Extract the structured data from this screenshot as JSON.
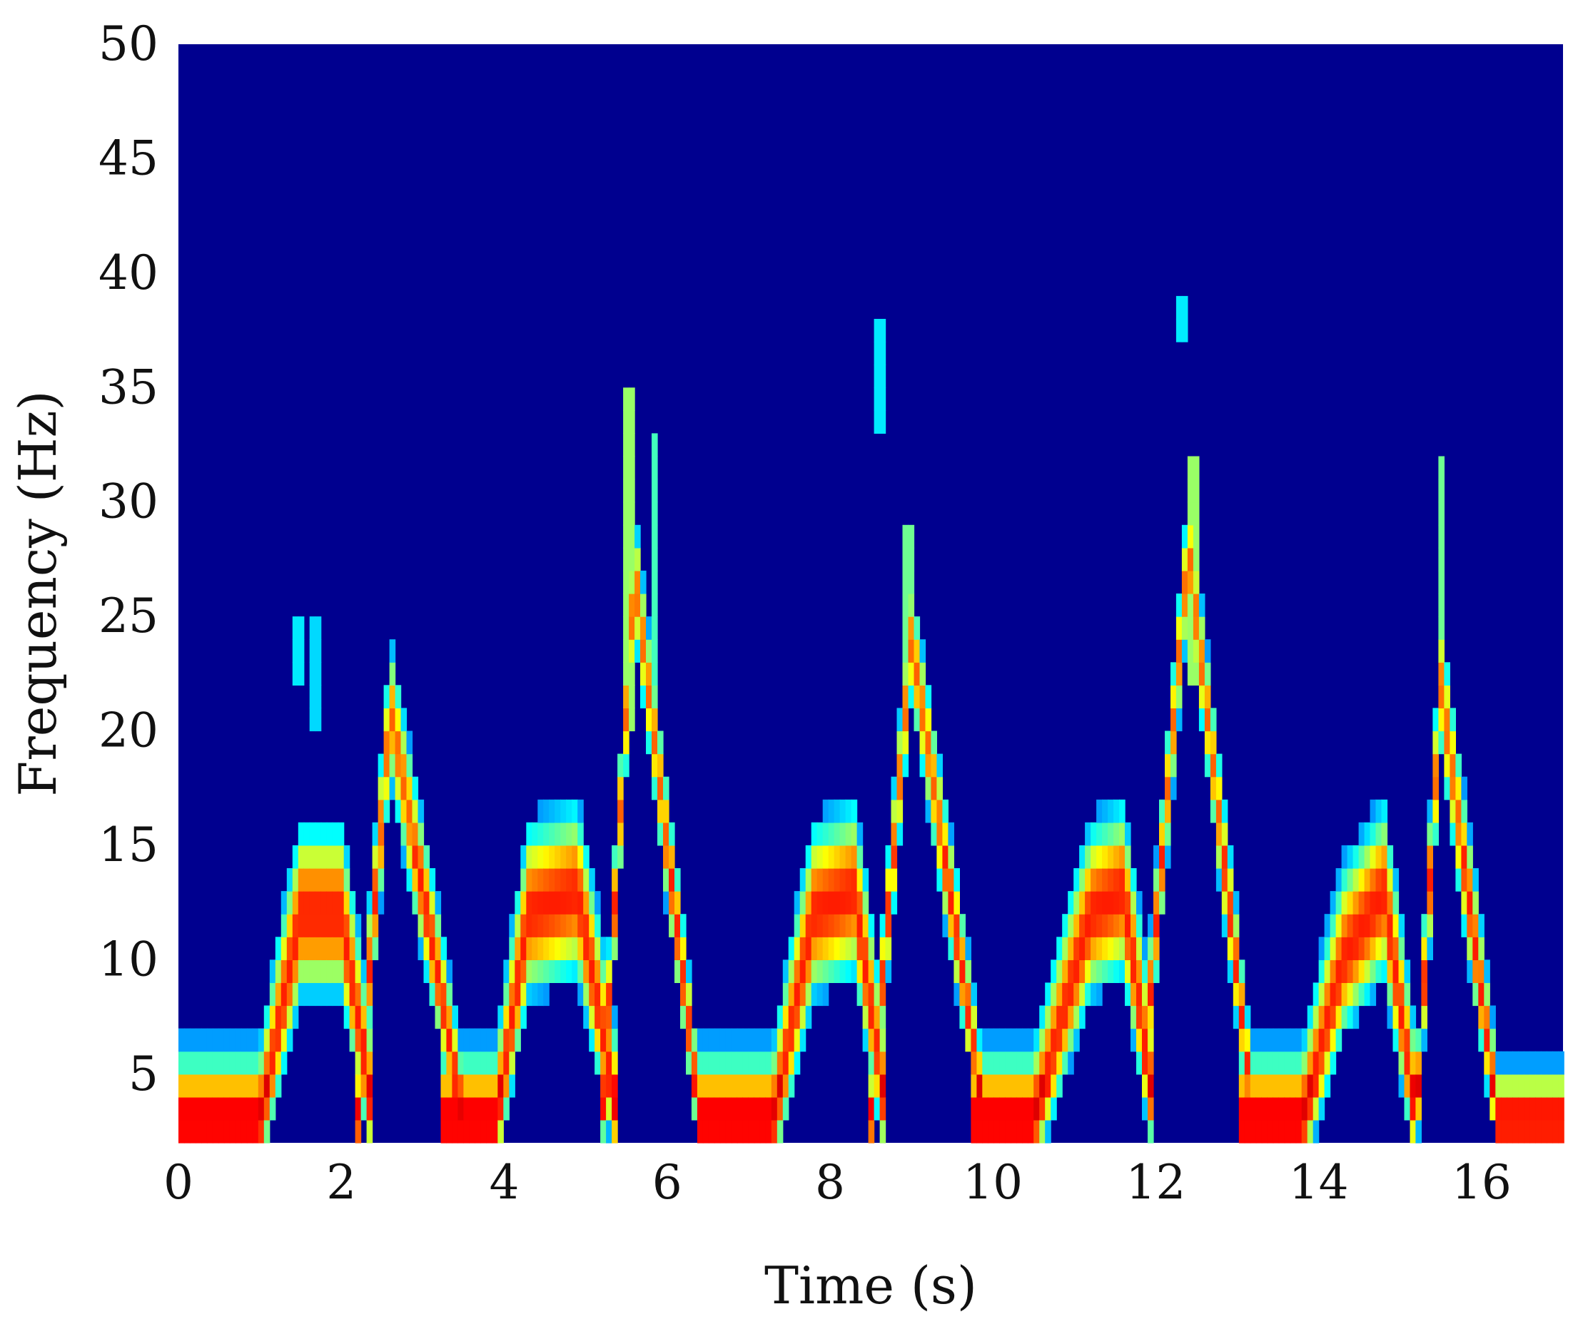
{
  "chart_data": {
    "type": "heatmap",
    "subtype": "spectrogram",
    "title": "",
    "xlabel": "Time (s)",
    "ylabel": "Frequency (Hz)",
    "xlim": [
      0,
      17
    ],
    "ylim": [
      2,
      50
    ],
    "xticks": [
      0,
      2,
      4,
      6,
      8,
      10,
      12,
      14,
      16
    ],
    "yticks": [
      5,
      10,
      15,
      20,
      25,
      30,
      35,
      40,
      45,
      50
    ],
    "colormap": "jet",
    "background_color": "#00008f",
    "grid": false,
    "ridges": [
      {
        "t": [
          0.0,
          1.0,
          1.5,
          2.0,
          2.4
        ],
        "f": [
          3,
          3,
          12,
          12,
          3
        ],
        "width": 6
      },
      {
        "t": [
          2.2,
          2.6,
          3.5
        ],
        "f": [
          3,
          21,
          3
        ],
        "width": 4.5
      },
      {
        "t": [
          3.2,
          3.9,
          4.3,
          4.9,
          5.4
        ],
        "f": [
          3,
          3,
          12,
          13,
          3
        ],
        "width": 6
      },
      {
        "t": [
          5.2,
          5.6,
          6.4
        ],
        "f": [
          3,
          27,
          3
        ],
        "width": 4
      },
      {
        "t": [
          6.4,
          7.3,
          7.8,
          8.3,
          8.7
        ],
        "f": [
          3,
          3,
          12,
          13,
          3
        ],
        "width": 6
      },
      {
        "t": [
          8.5,
          9.0,
          9.9
        ],
        "f": [
          3,
          24,
          3
        ],
        "width": 4
      },
      {
        "t": [
          9.7,
          10.5,
          11.2,
          11.6,
          12.0
        ],
        "f": [
          3,
          3,
          12,
          13,
          3
        ],
        "width": 6
      },
      {
        "t": [
          11.8,
          12.4,
          13.2
        ],
        "f": [
          3,
          28,
          3
        ],
        "width": 4
      },
      {
        "t": [
          13.0,
          13.8,
          14.3,
          14.8,
          15.2
        ],
        "f": [
          3,
          3,
          10,
          13,
          3
        ],
        "width": 6
      },
      {
        "t": [
          15.2,
          15.5,
          16.2,
          17.0
        ],
        "f": [
          3,
          22,
          3,
          3
        ],
        "width": 4.5
      }
    ],
    "spikes": [
      {
        "t": 1.45,
        "f_low": 22,
        "f_high": 25,
        "intensity": 0.3
      },
      {
        "t": 1.7,
        "f_low": 20,
        "f_high": 25,
        "intensity": 0.28
      },
      {
        "t": 5.55,
        "f_low": 20,
        "f_high": 35,
        "intensity": 0.5
      },
      {
        "t": 5.85,
        "f_low": 22,
        "f_high": 33,
        "intensity": 0.4
      },
      {
        "t": 8.6,
        "f_low": 33,
        "f_high": 38,
        "intensity": 0.3
      },
      {
        "t": 8.95,
        "f_low": 22,
        "f_high": 29,
        "intensity": 0.45
      },
      {
        "t": 12.45,
        "f_low": 22,
        "f_high": 32,
        "intensity": 0.5
      },
      {
        "t": 12.3,
        "f_low": 37,
        "f_high": 39,
        "intensity": 0.3
      },
      {
        "t": 15.5,
        "f_low": 22,
        "f_high": 32,
        "intensity": 0.45
      }
    ]
  }
}
